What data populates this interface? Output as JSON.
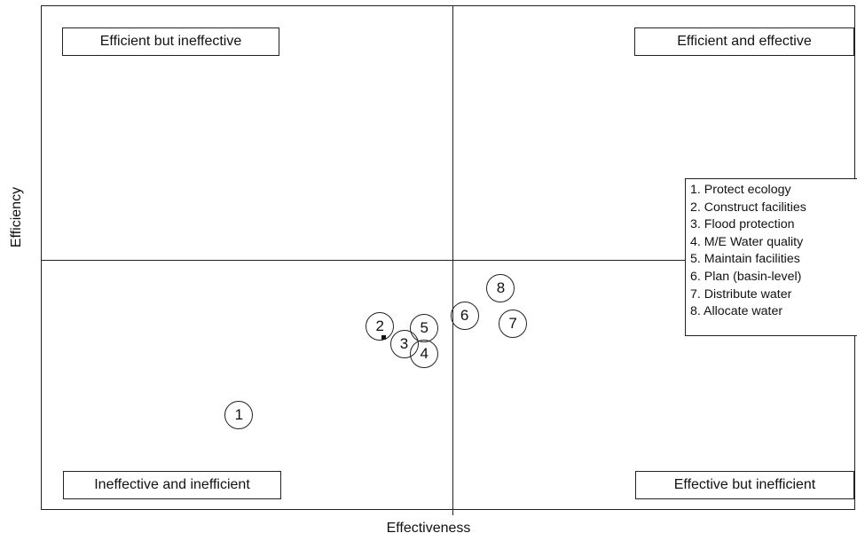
{
  "quadrants": {
    "top_left": "Efficient but ineffective",
    "top_right": "Efficient and effective",
    "bottom_left": "Ineffective and inefficient",
    "bottom_right": "Effective but inefficient"
  },
  "axes": {
    "x_label": "Effectiveness",
    "y_label": "Efficiency"
  },
  "points": [
    {
      "id": "1",
      "effectiveness": -0.53,
      "efficiency": -0.61
    },
    {
      "id": "2",
      "effectiveness": -0.18,
      "efficiency": -0.26
    },
    {
      "id": "3",
      "effectiveness": -0.12,
      "efficiency": -0.33
    },
    {
      "id": "4",
      "effectiveness": -0.07,
      "efficiency": -0.37
    },
    {
      "id": "5",
      "effectiveness": -0.07,
      "efficiency": -0.27
    },
    {
      "id": "6",
      "effectiveness": 0.03,
      "efficiency": -0.22
    },
    {
      "id": "7",
      "effectiveness": 0.15,
      "efficiency": -0.25
    },
    {
      "id": "8",
      "effectiveness": 0.12,
      "efficiency": -0.11
    }
  ],
  "legend": [
    "1. Protect ecology",
    "2. Construct facilities",
    "3. Flood protection",
    "4. M/E Water quality",
    "5. Maintain facilities",
    "6. Plan (basin-level)",
    "7. Distribute water",
    "8. Allocate water"
  ]
}
